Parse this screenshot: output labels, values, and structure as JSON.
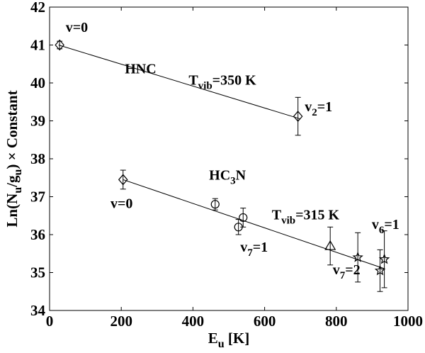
{
  "chart_data": {
    "type": "scatter",
    "xlabel": {
      "main": "E",
      "sub": "u",
      "rest": " [K]"
    },
    "ylabel": {
      "p1": "Ln(N",
      "s1": "u",
      "p2": "/g",
      "s2": "u",
      "p3": ") × Constant"
    },
    "xlim": [
      0,
      1000
    ],
    "ylim": [
      34,
      42
    ],
    "xticks": [
      0,
      200,
      400,
      600,
      800,
      1000
    ],
    "yticks": [
      34,
      35,
      36,
      37,
      38,
      39,
      40,
      41,
      42
    ],
    "grid": false,
    "series": [
      {
        "name": "HNC",
        "marker": "diamond",
        "points": [
          {
            "x": 28,
            "y": 41.0,
            "err": 0.1
          },
          {
            "x": 693,
            "y": 39.12,
            "err": 0.5
          }
        ],
        "fit": {
          "x": [
            25,
            700
          ],
          "y": [
            41.0,
            39.05
          ]
        }
      },
      {
        "name": "HC3N",
        "points": [
          {
            "x": 205,
            "y": 37.45,
            "err": 0.25,
            "marker": "diamond"
          },
          {
            "x": 462,
            "y": 36.8,
            "err": 0.15,
            "marker": "circle"
          },
          {
            "x": 527,
            "y": 36.2,
            "err": 0.2,
            "marker": "circle"
          },
          {
            "x": 540,
            "y": 36.45,
            "err": 0.25,
            "marker": "circle"
          },
          {
            "x": 783,
            "y": 35.7,
            "err": 0.5,
            "marker": "triangle"
          },
          {
            "x": 860,
            "y": 35.4,
            "err": 0.65,
            "marker": "star"
          },
          {
            "x": 922,
            "y": 35.05,
            "err": 0.55,
            "marker": "star"
          },
          {
            "x": 934,
            "y": 35.35,
            "err": 0.75,
            "marker": "star"
          }
        ],
        "fit": {
          "x": [
            205,
            935
          ],
          "y": [
            37.45,
            35.1
          ]
        }
      }
    ],
    "annotations": [
      {
        "id": "v0-hnc",
        "parts": [
          {
            "t": "v=0"
          }
        ],
        "x": 45,
        "y": 41.35
      },
      {
        "id": "hnc",
        "parts": [
          {
            "t": "HNC"
          }
        ],
        "x": 210,
        "y": 40.25
      },
      {
        "id": "tvib-hnc",
        "parts": [
          {
            "t": "T"
          },
          {
            "t": "vib",
            "sub": true
          },
          {
            "t": "=350 K"
          }
        ],
        "x": 388,
        "y": 39.95
      },
      {
        "id": "v2-1",
        "parts": [
          {
            "t": "v"
          },
          {
            "t": "2",
            "sub": true
          },
          {
            "t": "=1"
          }
        ],
        "x": 712,
        "y": 39.25
      },
      {
        "id": "v0-hc3n",
        "parts": [
          {
            "t": "v=0"
          }
        ],
        "x": 170,
        "y": 36.7
      },
      {
        "id": "hc3n",
        "parts": [
          {
            "t": "HC"
          },
          {
            "t": "3",
            "sub": true
          },
          {
            "t": "N"
          }
        ],
        "x": 445,
        "y": 37.45
      },
      {
        "id": "tvib-hc3n",
        "parts": [
          {
            "t": "T"
          },
          {
            "t": "vib",
            "sub": true
          },
          {
            "t": "=315 K"
          }
        ],
        "x": 620,
        "y": 36.4
      },
      {
        "id": "v7-1",
        "parts": [
          {
            "t": "v"
          },
          {
            "t": "7",
            "sub": true
          },
          {
            "t": "=1"
          }
        ],
        "x": 532,
        "y": 35.55
      },
      {
        "id": "v7-2",
        "parts": [
          {
            "t": "v"
          },
          {
            "t": "7",
            "sub": true
          },
          {
            "t": "=2"
          }
        ],
        "x": 790,
        "y": 34.95
      },
      {
        "id": "v6-1",
        "parts": [
          {
            "t": "v"
          },
          {
            "t": "6",
            "sub": true
          },
          {
            "t": "=1"
          }
        ],
        "x": 899,
        "y": 36.15
      }
    ]
  }
}
